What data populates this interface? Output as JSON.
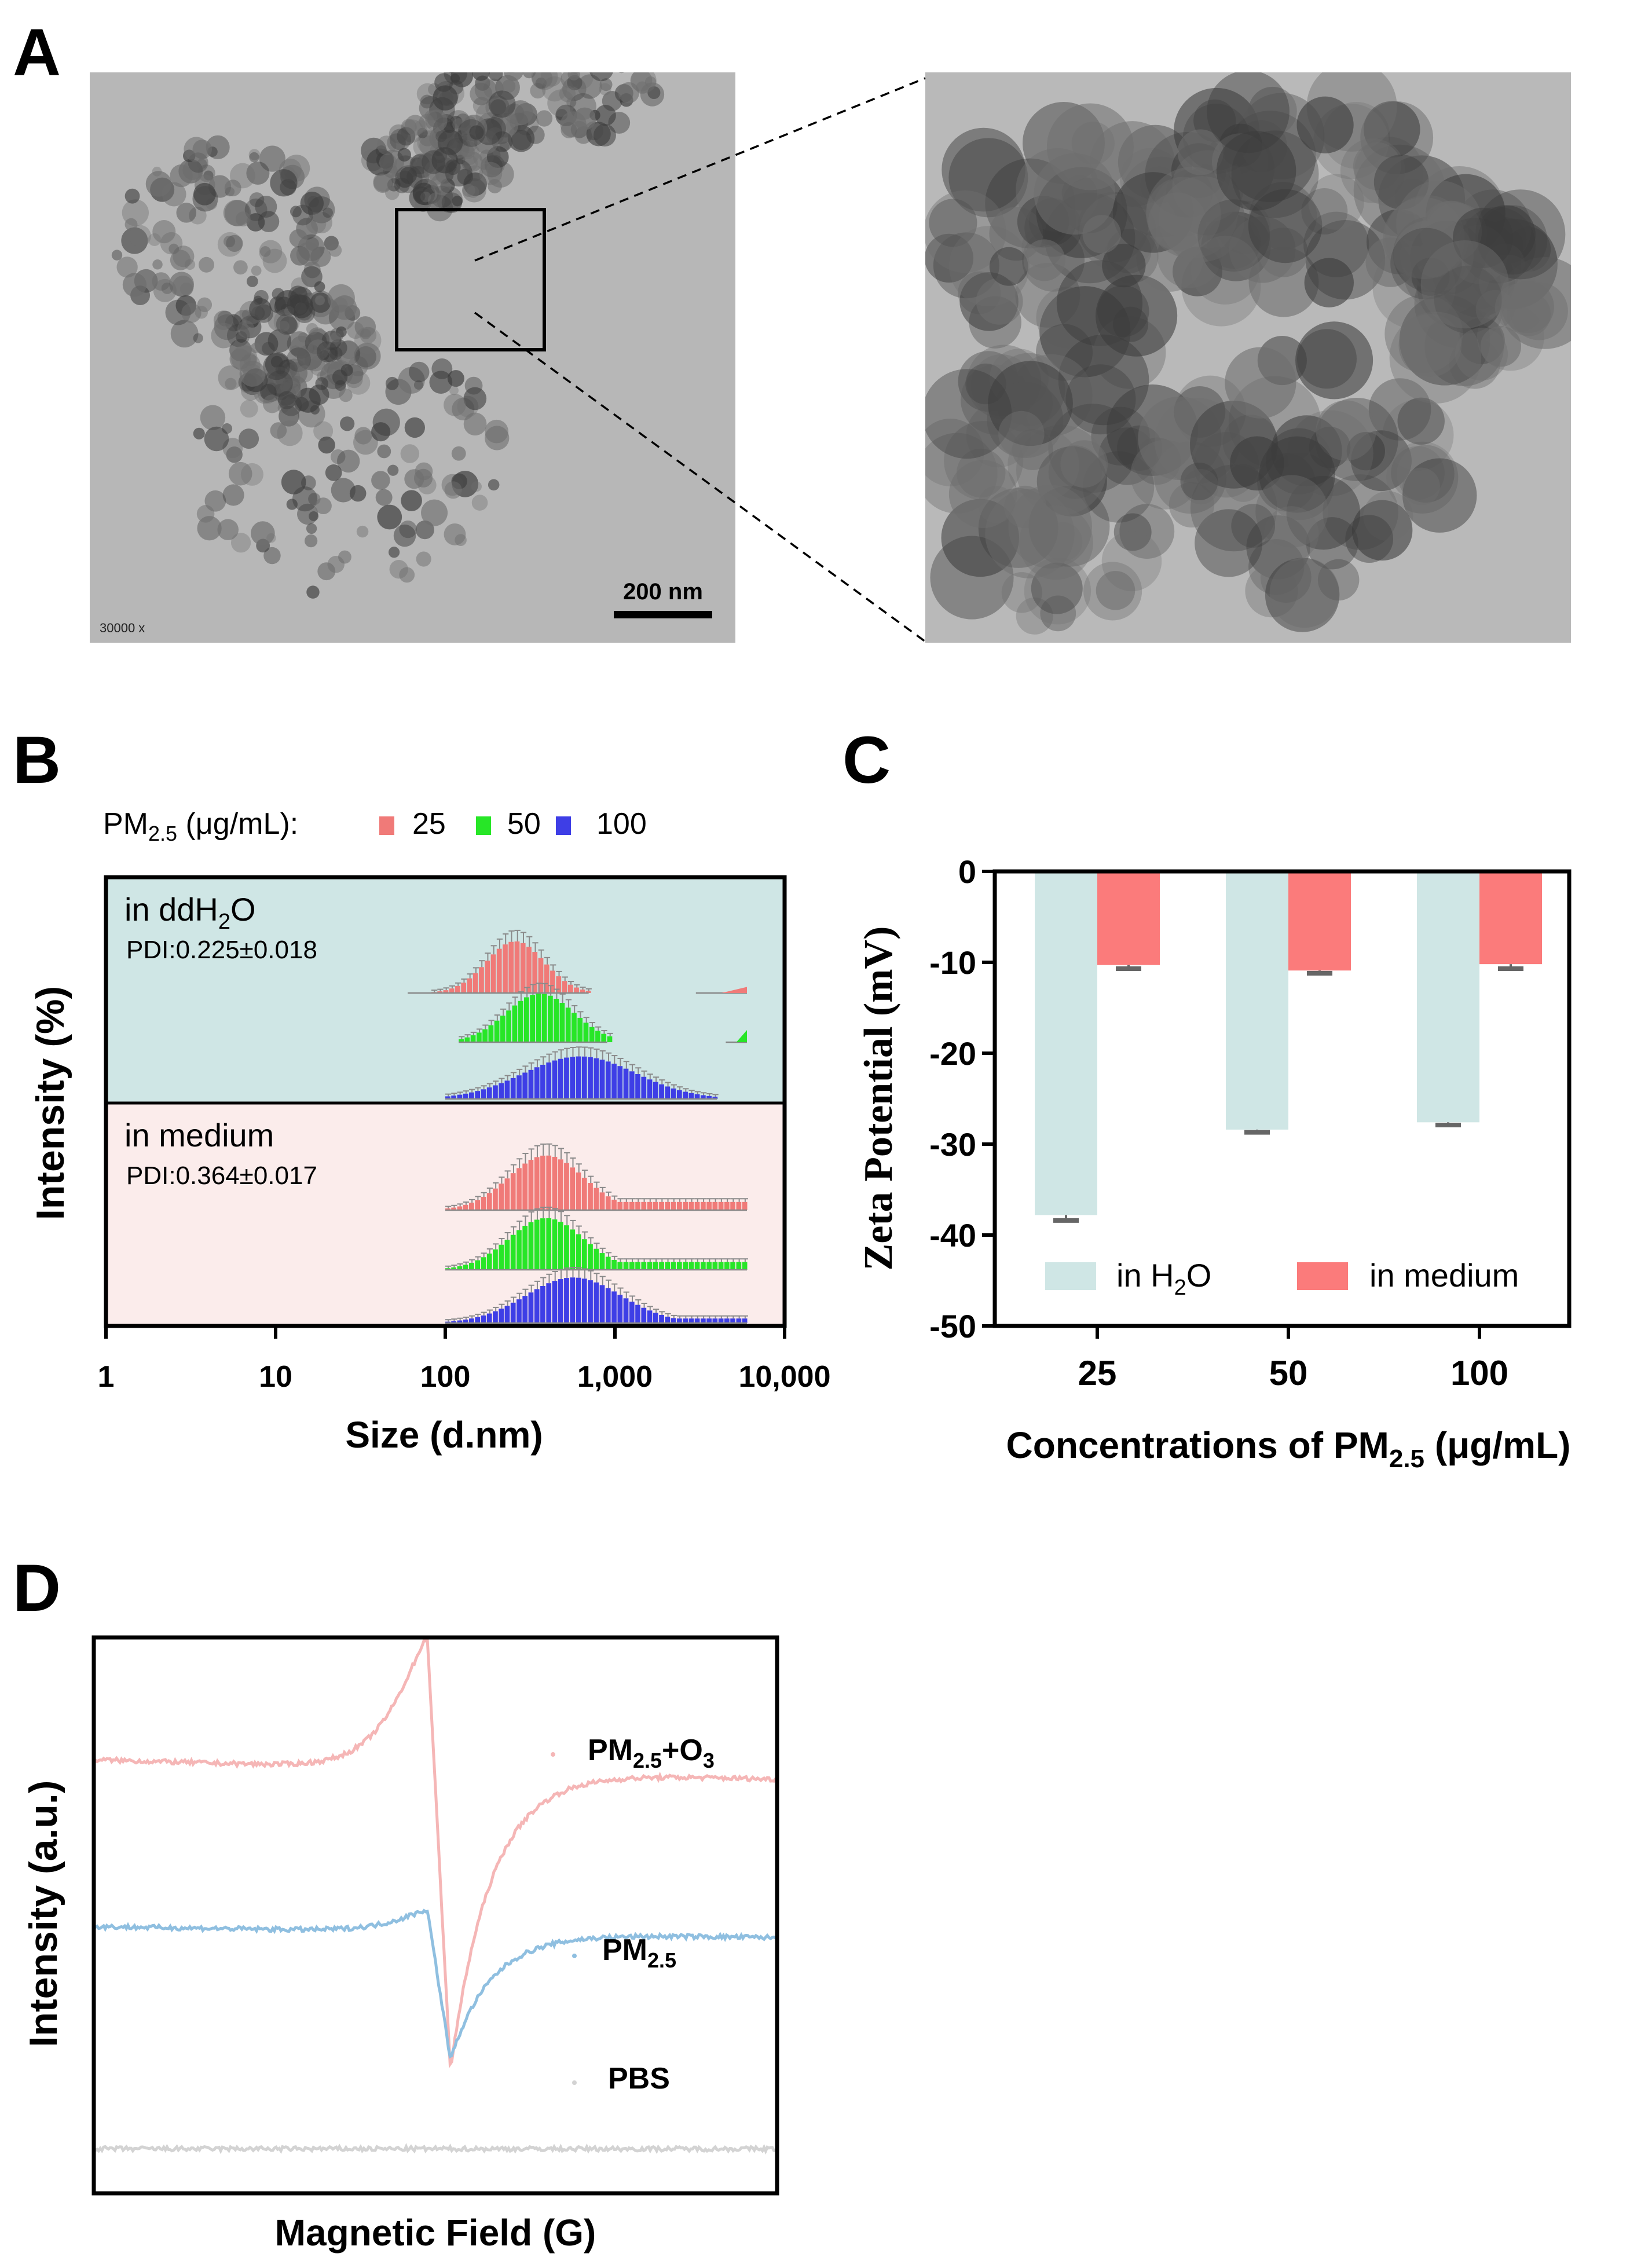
{
  "panels": {
    "a": {
      "label": "A",
      "scale_bar": "200 nm",
      "magnification": "30000 x",
      "colors": {
        "particle_dark": "#3c3c3c",
        "particle_mid": "#6e6e6e",
        "background": "#b7b7b7"
      }
    },
    "b": {
      "label": "B",
      "legend_title_pre": "PM",
      "legend_title_sub": "2.5",
      "legend_title_post": " (μg/mL):",
      "legend": [
        {
          "label": "25",
          "color": "#f07a78"
        },
        {
          "label": "50",
          "color": "#27e627"
        },
        {
          "label": "100",
          "color": "#3e3ee6"
        }
      ],
      "top_label_pre": "in ddH",
      "top_label_sub": "2",
      "top_label_post": "O",
      "top_pdi": "PDI:0.225±0.018",
      "bottom_label": "in medium",
      "bottom_pdi": "PDI:0.364±0.017",
      "top_bg": "#cfe6e5",
      "bottom_bg": "#fbeceb",
      "ylabel": "Intensity (%)",
      "xlabel": "Size (d.nm)",
      "x_ticks": [
        "1",
        "10",
        "100",
        "1,000",
        "10,000"
      ]
    },
    "c": {
      "label": "C",
      "legend_h2o_pre": "in H",
      "legend_h2o_sub": "2",
      "legend_h2o_post": "O",
      "legend_medium": "in medium",
      "ylabel": "Zeta Potential (mV)",
      "xlabel_pre": "Concentrations of PM",
      "xlabel_sub": "2.5",
      "xlabel_post": " (μg/mL)"
    },
    "d": {
      "label": "D",
      "ylabel": "Intensity (a.u.)",
      "xlabel": "Magnetic  Field (G)",
      "series_labels": [
        {
          "pre": "PM",
          "sub": "2.5",
          "post": "+O",
          "sub2": "3",
          "color": "#f5b6b6"
        },
        {
          "pre": "PM",
          "sub": "2.5",
          "post": "",
          "sub2": "",
          "color": "#8fbfe0"
        },
        {
          "pre": "PBS",
          "sub": "",
          "post": "",
          "sub2": "",
          "color": "#d3d3d3"
        }
      ]
    }
  },
  "chart_data": [
    {
      "panel": "B",
      "type": "bar",
      "title": "",
      "xlabel": "Size (d.nm)",
      "ylabel": "Intensity (%)",
      "x_scale": "log",
      "xlim": [
        1,
        10000
      ],
      "series": [
        {
          "name": "in ddH2O, 25 μg/mL",
          "mode_nm": 250,
          "log_sd": 0.17,
          "range_nm": [
            60,
            700
          ],
          "tail_nm": [
            3000,
            6000
          ],
          "tail_level": 0.1,
          "relative_peak": 0.85
        },
        {
          "name": "in ddH2O, 50 μg/mL",
          "mode_nm": 350,
          "log_sd": 0.2,
          "range_nm": [
            120,
            900
          ],
          "tail_nm": [
            4500,
            6000
          ],
          "tail_level": 0.2,
          "relative_peak": 0.8
        },
        {
          "name": "in ddH2O, 100 μg/mL",
          "mode_nm": 600,
          "log_sd": 0.33,
          "range_nm": [
            100,
            4000
          ],
          "tail_nm": [
            4000,
            6000
          ],
          "tail_level": 0.04,
          "relative_peak": 0.7
        },
        {
          "name": "in medium, 25 μg/mL",
          "mode_nm": 380,
          "log_sd": 0.22,
          "range_nm": [
            100,
            6000
          ],
          "tail_nm": [
            1000,
            6000
          ],
          "tail_level": 0.15,
          "relative_peak": 0.9
        },
        {
          "name": "in medium, 50 μg/mL",
          "mode_nm": 380,
          "log_sd": 0.22,
          "range_nm": [
            100,
            6000
          ],
          "tail_nm": [
            1000,
            6000
          ],
          "tail_level": 0.15,
          "relative_peak": 0.85
        },
        {
          "name": "in medium, 100 μg/mL",
          "mode_nm": 550,
          "log_sd": 0.28,
          "range_nm": [
            100,
            6000
          ],
          "tail_nm": [
            1500,
            6000
          ],
          "tail_level": 0.1,
          "relative_peak": 0.75
        }
      ]
    },
    {
      "panel": "C",
      "type": "bar",
      "title": "",
      "xlabel": "Concentrations of PM2.5 (μg/mL)",
      "ylabel": "Zeta Potential (mV)",
      "ylim": [
        -50,
        0
      ],
      "y_ticks": [
        "0",
        "-10",
        "-20",
        "-30",
        "-40",
        "-50"
      ],
      "categories": [
        "25",
        "50",
        "100"
      ],
      "series": [
        {
          "name": "in H2O",
          "color": "#cfe6e5",
          "values": [
            -37.8,
            -28.4,
            -27.6
          ],
          "errors": [
            0.6,
            0.3,
            0.3
          ]
        },
        {
          "name": "in medium",
          "color": "#fb7b7b",
          "values": [
            -10.3,
            -10.9,
            -10.2
          ],
          "errors": [
            0.4,
            0.3,
            0.5
          ]
        }
      ]
    },
    {
      "panel": "D",
      "type": "line",
      "title": "",
      "xlabel": "Magnetic  Field (G)",
      "ylabel": "Intensity (a.u.)",
      "series": [
        {
          "name": "PM2.5+O3",
          "color": "#f5b6b6",
          "baseline_left": 0.78,
          "baseline_right": 0.745,
          "peak": 1.0,
          "trough": 0.22
        },
        {
          "name": "PM2.5",
          "color": "#8fbfe0",
          "baseline_left": 0.48,
          "baseline_right": 0.46,
          "peak": 0.51,
          "trough": 0.24
        },
        {
          "name": "PBS",
          "color": "#d3d3d3",
          "baseline_left": 0.08,
          "baseline_right": 0.08,
          "peak": 0.0,
          "trough": 0.0
        }
      ]
    }
  ]
}
